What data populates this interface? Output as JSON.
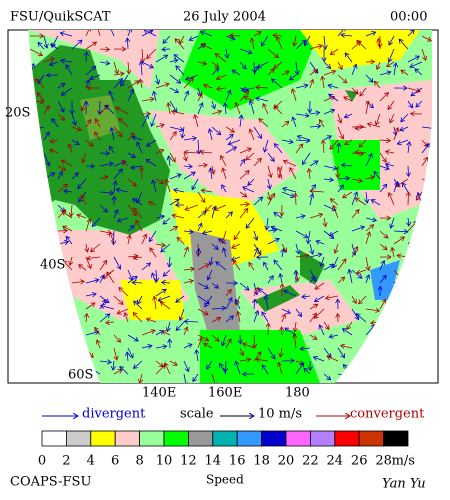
{
  "header": {
    "left": "FSU/QuikSCAT",
    "center": "26 July 2004",
    "right": "00:00"
  },
  "map": {
    "lat_labels": [
      "20S",
      "40S",
      "60S"
    ],
    "lon_labels": [
      "140E",
      "160E",
      "180"
    ]
  },
  "legend": {
    "divergent": "divergent",
    "scale": "scale",
    "scale_value": "10 m/s",
    "convergent": "convergent"
  },
  "colorbar": {
    "colors": [
      "#ffffff",
      "#cccccc",
      "#ffff00",
      "#ffcccc",
      "#99ff99",
      "#00ff00",
      "#999999",
      "#00b3b3",
      "#3399ff",
      "#0000cc",
      "#ff66ff",
      "#b380ff",
      "#ff0000",
      "#cc3300",
      "#000000"
    ],
    "ticks": [
      0,
      2,
      4,
      6,
      8,
      10,
      12,
      14,
      16,
      18,
      20,
      22,
      24,
      26,
      28
    ],
    "unit": "m/s",
    "title": "Speed"
  },
  "footer": {
    "left": "COAPS-FSU",
    "right": "Yan Yu"
  }
}
